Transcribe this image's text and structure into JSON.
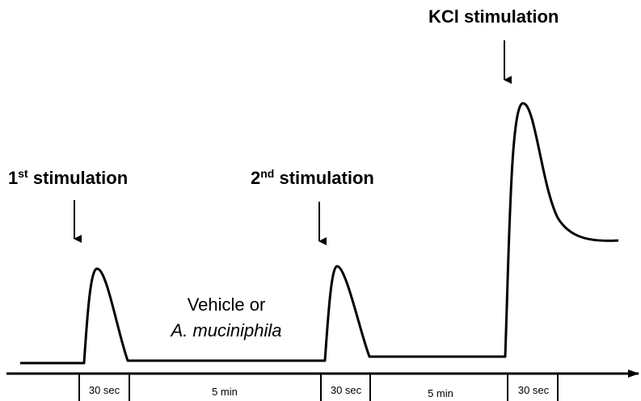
{
  "labels": [
    {
      "number": "1",
      "suffix": "st",
      "text": "stimulation"
    },
    {
      "number": "2",
      "suffix": "nd",
      "text": "stimulation"
    },
    {
      "text": "KCl stimulation"
    }
  ],
  "treatment": {
    "line1": "Vehicle or",
    "line2": "A. muciniphila"
  },
  "timeline": [
    "30 sec",
    "5 min",
    "30 sec",
    "5 min",
    "30 sec"
  ]
}
